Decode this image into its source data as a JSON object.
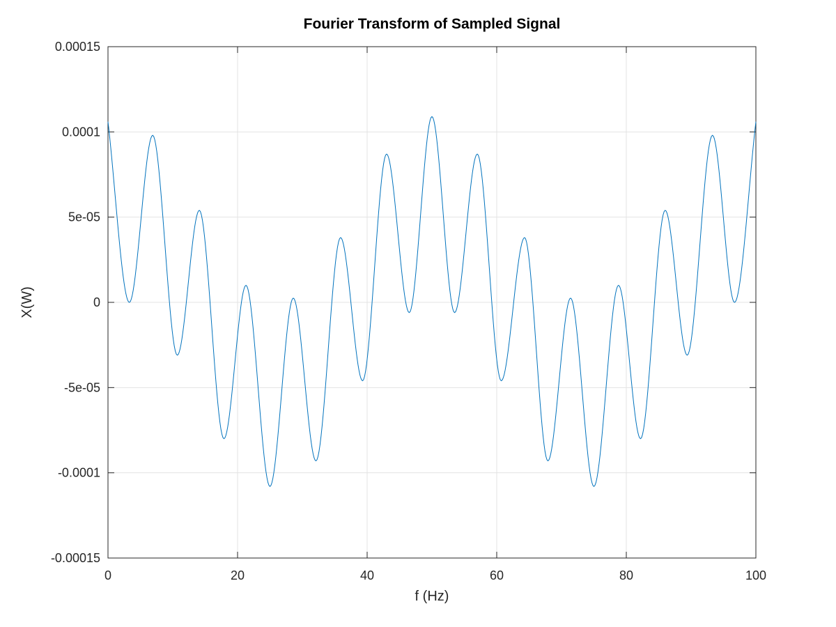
{
  "chart_data": {
    "type": "line",
    "title": "Fourier Transform of Sampled Signal",
    "xlabel": "f (Hz)",
    "ylabel": "X(W)",
    "xlim": [
      0,
      100
    ],
    "ylim": [
      -0.00015,
      0.00015
    ],
    "grid": true,
    "box": true,
    "xticks": [
      0,
      20,
      40,
      60,
      80,
      100
    ],
    "xtick_labels": [
      "0",
      "20",
      "40",
      "60",
      "80",
      "100"
    ],
    "yticks": [
      -0.00015,
      -0.0001,
      -5e-05,
      0,
      5e-05,
      0.0001,
      0.00015
    ],
    "ytick_labels": [
      "-0.00015",
      "-0.0001",
      "-5e-05",
      "0",
      "5e-05",
      "0.0001",
      "0.00015"
    ],
    "series": [
      {
        "color": "#0072bd",
        "x": [
          0,
          3.3,
          6.9,
          10.7,
          14.1,
          17.9,
          21.3,
          25.0,
          28.6,
          32.1,
          35.9,
          39.3,
          43.0,
          46.5,
          50.0,
          53.5,
          57.0,
          60.7,
          64.3,
          67.9,
          71.4,
          75.0,
          78.8,
          82.2,
          86.0,
          89.4,
          93.3,
          96.7,
          100
        ],
        "y": [
          0.000106,
          0.0,
          9.8e-05,
          -3.1e-05,
          5.4e-05,
          -8e-05,
          1e-05,
          -0.000108,
          2.5e-06,
          -9.3e-05,
          3.8e-05,
          -4.6e-05,
          8.7e-05,
          -6e-06,
          0.000109,
          -6e-06,
          8.7e-05,
          -4.6e-05,
          3.8e-05,
          -9.3e-05,
          2.5e-06,
          -0.000108,
          1e-05,
          -8e-05,
          5.4e-05,
          -3.1e-05,
          9.8e-05,
          0.0,
          0.000106
        ]
      }
    ]
  }
}
